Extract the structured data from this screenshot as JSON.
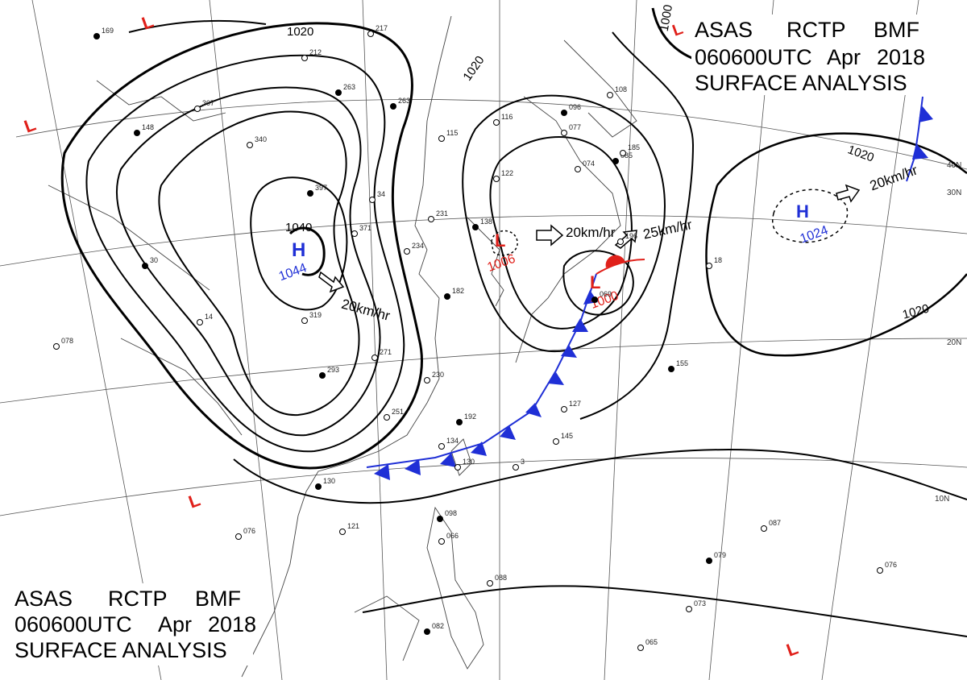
{
  "header_top": {
    "line1": [
      "ASAS",
      "RCTP",
      "BMF"
    ],
    "line2": [
      "060600UTC",
      "Apr",
      "2018"
    ],
    "line3": "SURFACE  ANALYSIS"
  },
  "header_bottom": {
    "line1": [
      "ASAS",
      "RCTP",
      "BMF"
    ],
    "line2": [
      "060600UTC",
      "Apr",
      "2018"
    ],
    "line3": "SURFACE  ANALYSIS"
  },
  "colors": {
    "high": "#1f2fd6",
    "low": "#e0201a",
    "cold_front": "#1f2fd6",
    "warm_front": "#e0201a",
    "isobar": "#000000",
    "coast": "#444444",
    "grid": "#555555"
  },
  "isobar_labels": [
    "1020",
    "1020",
    "1020",
    "1020",
    "1000",
    "1040"
  ],
  "pressure_centers": [
    {
      "type": "H",
      "value": "1044"
    },
    {
      "type": "L",
      "value": "1006"
    },
    {
      "type": "L",
      "value": "1000"
    },
    {
      "type": "H",
      "value": "1024"
    },
    {
      "type": "L",
      "value": ""
    },
    {
      "type": "L",
      "value": ""
    },
    {
      "type": "L",
      "value": ""
    },
    {
      "type": "L",
      "value": ""
    },
    {
      "type": "L",
      "value": ""
    }
  ],
  "motion_labels": [
    "20km/hr",
    "20km/hr",
    "25km/hr",
    "20km/hr"
  ],
  "lat_labels": [
    "40N",
    "30N",
    "20N",
    "10N"
  ],
  "stations": [
    "169",
    "212",
    "217",
    "263",
    "307",
    "340",
    "397",
    "371",
    "34",
    "263",
    "115",
    "116",
    "096",
    "108",
    "077",
    "085",
    "074",
    "122",
    "138",
    "231",
    "234",
    "182",
    "319",
    "271",
    "293",
    "230",
    "251",
    "192",
    "134",
    "130",
    "130",
    "121",
    "076",
    "098",
    "066",
    "088",
    "082",
    "065",
    "073",
    "079",
    "087",
    "076",
    "155",
    "145",
    "127",
    "069",
    "196",
    "185",
    "148",
    "078",
    "14",
    "30",
    "18",
    "3"
  ]
}
